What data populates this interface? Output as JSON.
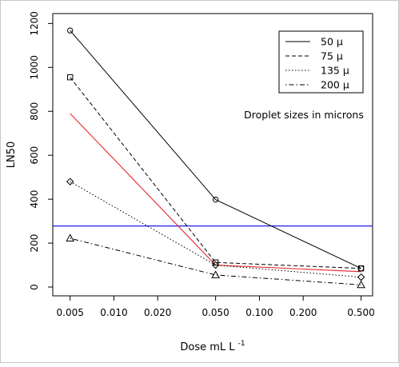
{
  "chart_data": {
    "type": "line",
    "x_scale": "log",
    "xlabel": "Dose mL L",
    "xlabel_superscript": "-1",
    "ylabel": "LN50",
    "x_ticks": [
      "0.005",
      "0.010",
      "0.020",
      "0.050",
      "0.100",
      "0.200",
      "0.500"
    ],
    "y_ticks": [
      "0",
      "200",
      "400",
      "600",
      "800",
      "1000",
      "1200"
    ],
    "xlim": [
      0.0038,
      0.6
    ],
    "ylim": [
      -40,
      1245
    ],
    "grid": false,
    "legend_position": "top-right",
    "annotation": "Droplet sizes in microns",
    "x": [
      0.005,
      0.05,
      0.5
    ],
    "series": [
      {
        "name": "50 µ",
        "values": [
          1168,
          398,
          85
        ],
        "line": "solid",
        "marker": "circle",
        "color": "#000000"
      },
      {
        "name": "75 µ",
        "values": [
          955,
          112,
          85
        ],
        "line": "dashed",
        "marker": "square",
        "color": "#000000"
      },
      {
        "name": "135 µ",
        "values": [
          480,
          100,
          45
        ],
        "line": "dotted",
        "marker": "diamond",
        "color": "#000000"
      },
      {
        "name": "200 µ",
        "values": [
          222,
          55,
          10
        ],
        "line": "dotdash",
        "marker": "triangle",
        "color": "#000000"
      }
    ],
    "fit_line": {
      "values": [
        790,
        100,
        70
      ],
      "color": "#e8262a"
    },
    "reference_line": {
      "y": 278,
      "color": "#1c1ce6"
    }
  }
}
